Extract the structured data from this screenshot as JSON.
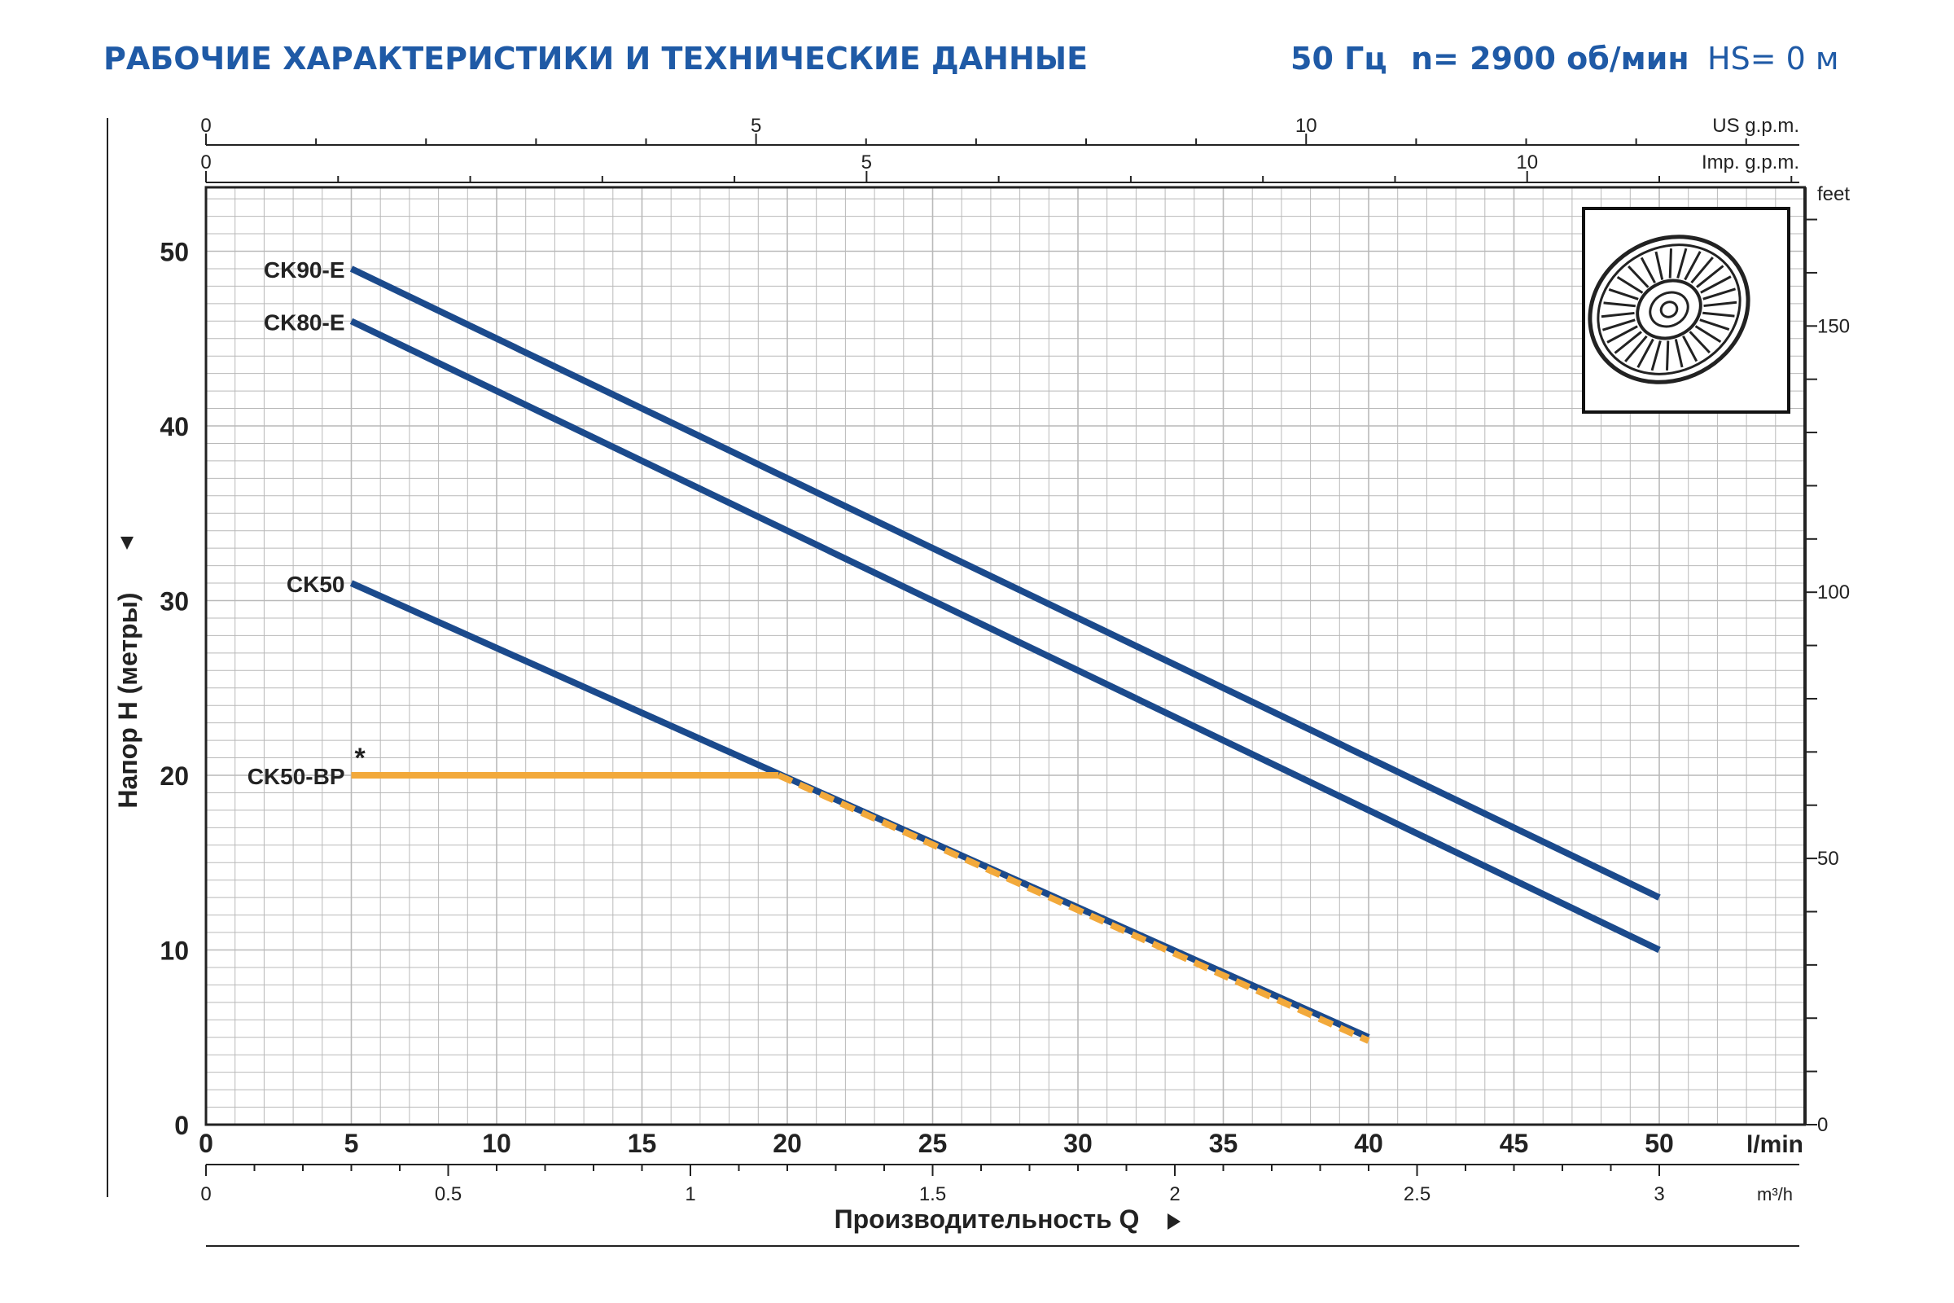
{
  "header": {
    "title": "РАБОЧИЕ ХАРАКТЕРИСТИКИ И ТЕХНИЧЕСКИЕ ДАННЫЕ",
    "frequency": "50 Гц",
    "speed": "n= 2900 об/мин",
    "hs": "HS= 0 м"
  },
  "colors": {
    "header": "#1f5aa6",
    "curve": "#1b4a8c",
    "bypass": "#f2a93b",
    "grid": "#b9b9b9",
    "axis": "#222222"
  },
  "chart_data": {
    "type": "line",
    "title": "",
    "xlabel": "Производительность Q",
    "ylabel": "Напор H (метры)",
    "xlim": [
      0,
      55
    ],
    "ylim": [
      0,
      54
    ],
    "x_ticks": [
      0,
      5,
      10,
      15,
      20,
      25,
      30,
      35,
      40,
      45,
      50
    ],
    "x_unit": "l/min",
    "y_ticks": [
      0,
      10,
      20,
      30,
      40,
      50
    ],
    "grid": true,
    "series": [
      {
        "name": "CK90-E",
        "x": [
          5,
          50
        ],
        "y": [
          49,
          13
        ],
        "color": "#1b4a8c",
        "style": "solid"
      },
      {
        "name": "CK80-E",
        "x": [
          5,
          50
        ],
        "y": [
          46,
          10
        ],
        "color": "#1b4a8c",
        "style": "solid"
      },
      {
        "name": "CK50",
        "x": [
          5,
          40
        ],
        "y": [
          31,
          5
        ],
        "color": "#1b4a8c",
        "style": "solid"
      },
      {
        "name": "CK50-BP",
        "x": [
          5,
          19.7,
          40
        ],
        "y": [
          20,
          20,
          4.8
        ],
        "color": "#f2a93b",
        "style": "bypass"
      }
    ],
    "annotations": [
      {
        "text": "*",
        "near": "CK50-BP"
      }
    ],
    "secondary_axes": {
      "us_gpm": {
        "label": "US g.p.m.",
        "ticks": [
          0,
          5,
          10
        ],
        "per_l_min": 0.2642
      },
      "imp_gpm": {
        "label": "Imp. g.p.m.",
        "ticks": [
          0,
          5,
          10
        ],
        "per_l_min": 0.22
      },
      "m3h": {
        "label": "m³/h",
        "ticks": [
          "0",
          "0.5",
          "1",
          "1.5",
          "2",
          "2.5",
          "3"
        ],
        "values": [
          0,
          0.5,
          1,
          1.5,
          2,
          2.5,
          3
        ]
      },
      "feet": {
        "label": "feet",
        "ticks": [
          0,
          50,
          100,
          150
        ]
      }
    },
    "inset": "impeller-image"
  }
}
